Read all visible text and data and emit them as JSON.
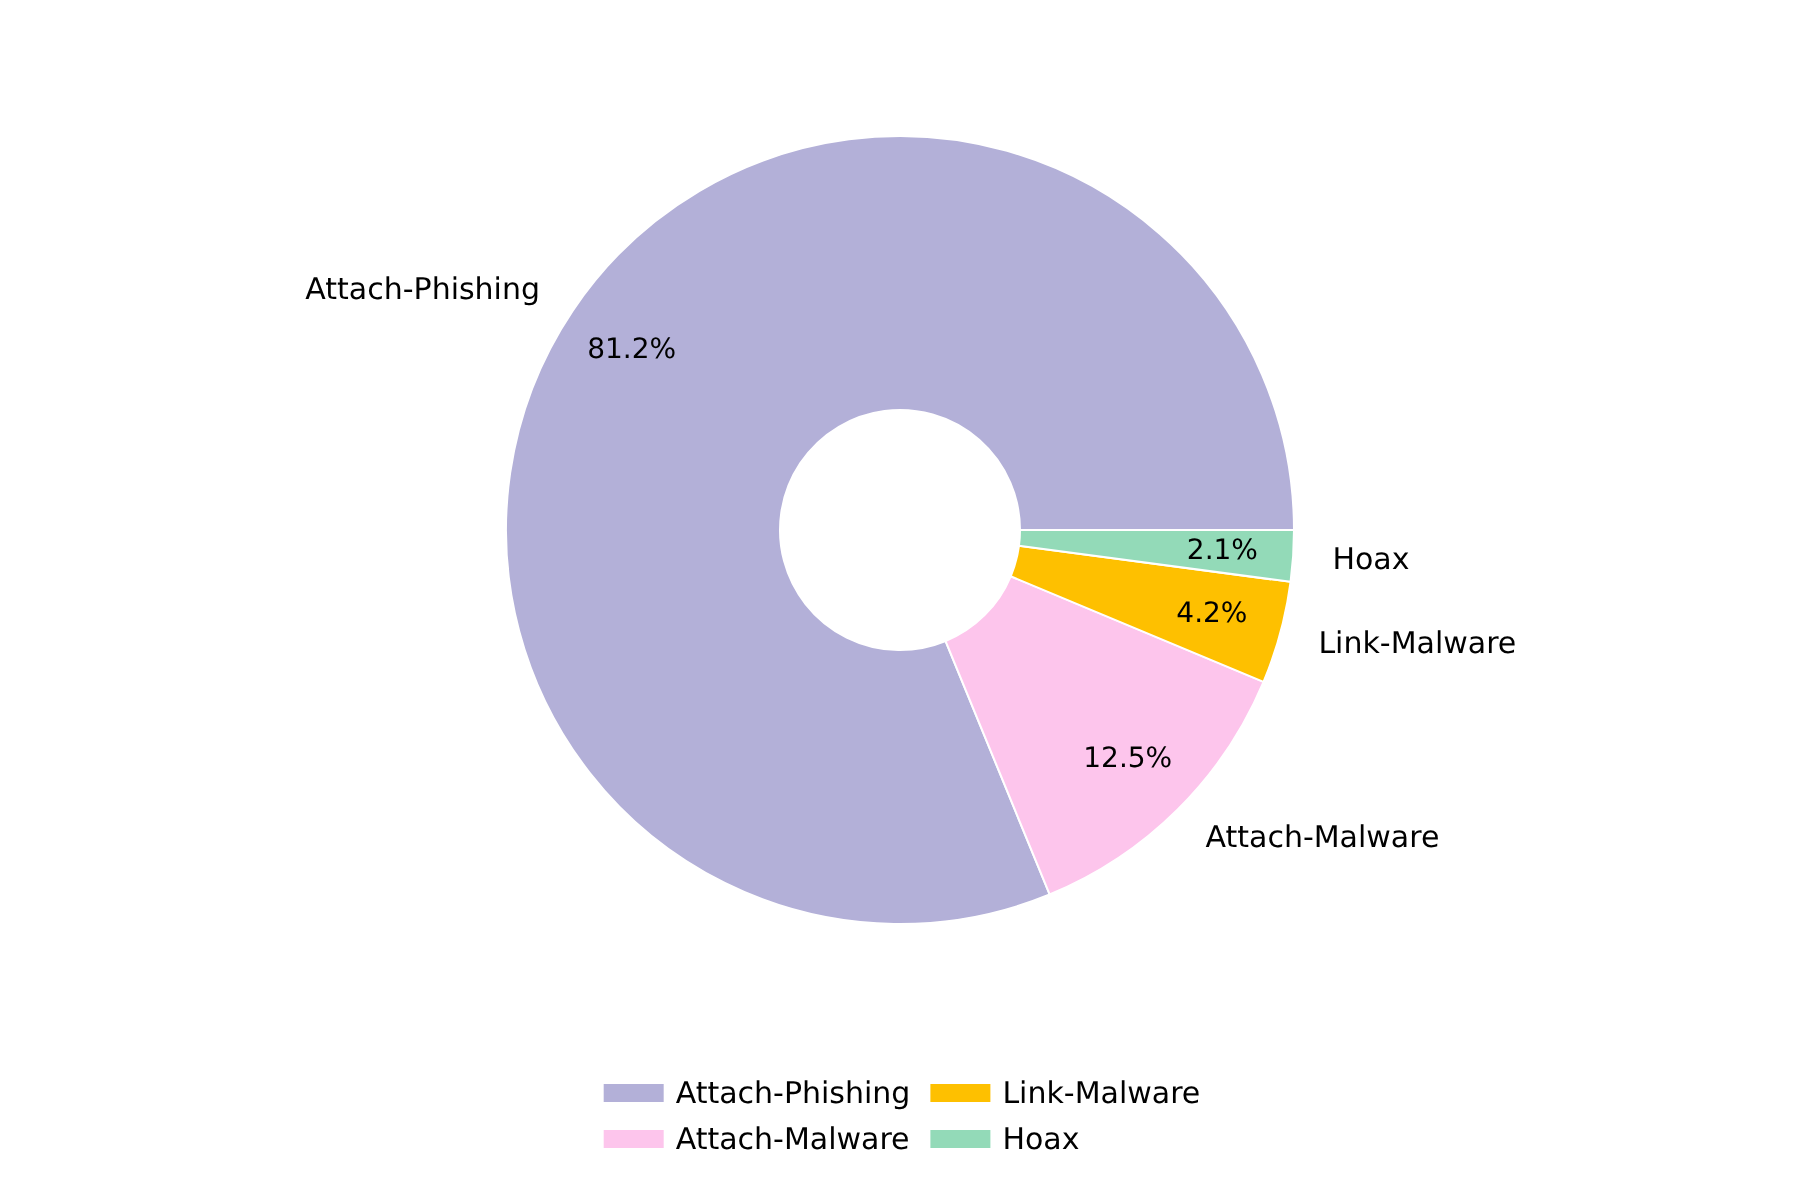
{
  "chart_data": {
    "type": "donut",
    "categories": [
      "Attach-Phishing",
      "Attach-Malware",
      "Link-Malware",
      "Hoax"
    ],
    "values": [
      81.2,
      12.5,
      4.2,
      2.1
    ],
    "colors": [
      "#b3b0d8",
      "#fdc5ec",
      "#fec000",
      "#93dab8"
    ],
    "value_labels": [
      "81.2%",
      "12.5%",
      "4.2%",
      "2.1%"
    ],
    "legend": "bottom"
  }
}
